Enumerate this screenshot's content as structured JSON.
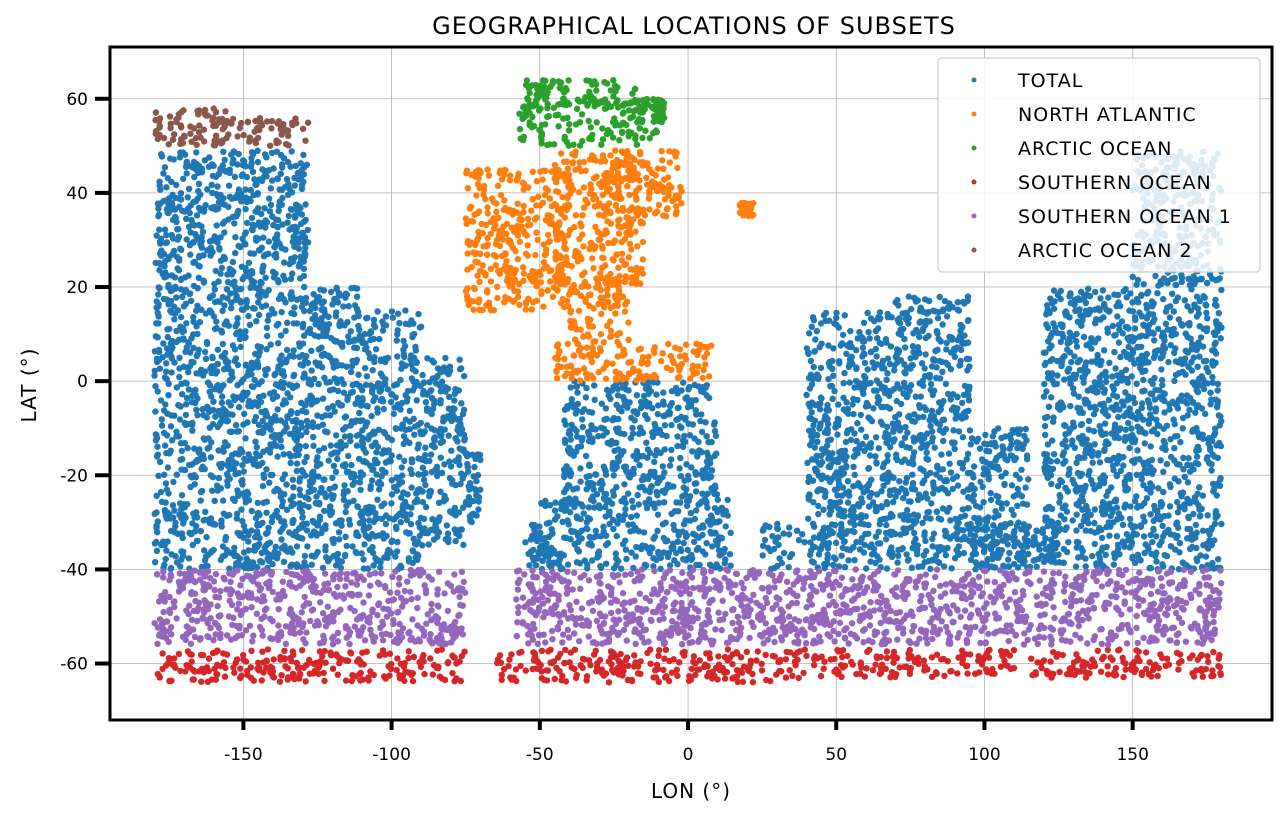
{
  "chart_data": {
    "type": "scatter",
    "title": "GEOGRAPHICAL LOCATIONS OF SUBSETS",
    "xlabel": "LON (°)",
    "ylabel": "LAT (°)",
    "xlim": [
      -195,
      197
    ],
    "ylim": [
      -72,
      71
    ],
    "xticks": [
      -150,
      -100,
      -50,
      0,
      50,
      100,
      150
    ],
    "yticks": [
      -60,
      -40,
      -20,
      0,
      20,
      40,
      60
    ],
    "grid": true,
    "legend_position": "top-right",
    "series": [
      {
        "name": "TOTAL",
        "color": "#1f77b4",
        "regions": [
          {
            "lon": [
              -180,
              -128
            ],
            "lat": [
              -40,
              49
            ]
          },
          {
            "lon": [
              -128,
              -110
            ],
            "lat": [
              -40,
              20
            ]
          },
          {
            "lon": [
              -110,
              -90
            ],
            "lat": [
              -40,
              15
            ]
          },
          {
            "lon": [
              -90,
              -75
            ],
            "lat": [
              -35,
              5
            ]
          },
          {
            "lon": [
              -75,
              -70
            ],
            "lat": [
              -30,
              -15
            ]
          },
          {
            "lon": [
              -40,
              8
            ],
            "lat": [
              -5,
              0
            ]
          },
          {
            "lon": [
              -42,
              10
            ],
            "lat": [
              -25,
              -5
            ]
          },
          {
            "lon": [
              -50,
              15
            ],
            "lat": [
              -40,
              -25
            ]
          },
          {
            "lon": [
              -55,
              -45
            ],
            "lat": [
              -40,
              -30
            ]
          },
          {
            "lon": [
              40,
              70
            ],
            "lat": [
              -30,
              15
            ]
          },
          {
            "lon": [
              25,
              125
            ],
            "lat": [
              -40,
              -30
            ]
          },
          {
            "lon": [
              70,
              95
            ],
            "lat": [
              -30,
              18
            ]
          },
          {
            "lon": [
              95,
              115
            ],
            "lat": [
              -40,
              -10
            ]
          },
          {
            "lon": [
              120,
              180
            ],
            "lat": [
              -40,
              20
            ]
          },
          {
            "lon": [
              150,
              180
            ],
            "lat": [
              20,
              49
            ]
          }
        ]
      },
      {
        "name": "NORTH ATLANTIC",
        "color": "#ff7f0e",
        "regions": [
          {
            "lon": [
              -75,
              -40
            ],
            "lat": [
              15,
              45
            ]
          },
          {
            "lon": [
              -45,
              -15
            ],
            "lat": [
              20,
              49
            ]
          },
          {
            "lon": [
              -30,
              -2
            ],
            "lat": [
              35,
              49
            ]
          },
          {
            "lon": [
              -40,
              -20
            ],
            "lat": [
              8,
              22
            ]
          },
          {
            "lon": [
              -45,
              8
            ],
            "lat": [
              0,
              8
            ]
          },
          {
            "lon": [
              17,
              22
            ],
            "lat": [
              35,
              38
            ]
          }
        ]
      },
      {
        "name": "ARCTIC OCEAN",
        "color": "#2ca02c",
        "regions": [
          {
            "lon": [
              -57,
              -10
            ],
            "lat": [
              50,
              60
            ]
          },
          {
            "lon": [
              -55,
              -40
            ],
            "lat": [
              60,
              64
            ]
          },
          {
            "lon": [
              -35,
              -15
            ],
            "lat": [
              58,
              64
            ]
          },
          {
            "lon": [
              -12,
              -8
            ],
            "lat": [
              55,
              60
            ]
          }
        ]
      },
      {
        "name": "SOUTHERN OCEAN",
        "color": "#d62728",
        "regions": [
          {
            "lon": [
              -180,
              -75
            ],
            "lat": [
              -64,
              -57
            ]
          },
          {
            "lon": [
              -65,
              40
            ],
            "lat": [
              -64,
              -57
            ]
          },
          {
            "lon": [
              42,
              110
            ],
            "lat": [
              -63,
              -57
            ]
          },
          {
            "lon": [
              115,
              180
            ],
            "lat": [
              -63,
              -57
            ]
          }
        ]
      },
      {
        "name": "SOUTHERN OCEAN 1",
        "color": "#9467bd",
        "regions": [
          {
            "lon": [
              -180,
              -75
            ],
            "lat": [
              -56,
              -40
            ]
          },
          {
            "lon": [
              -58,
              180
            ],
            "lat": [
              -56,
              -40
            ]
          }
        ]
      },
      {
        "name": "ARCTIC OCEAN 2",
        "color": "#8c564b",
        "regions": [
          {
            "lon": [
              -180,
              -155
            ],
            "lat": [
              50,
              58
            ]
          },
          {
            "lon": [
              -160,
              -128
            ],
            "lat": [
              50,
              56
            ]
          }
        ]
      }
    ]
  }
}
